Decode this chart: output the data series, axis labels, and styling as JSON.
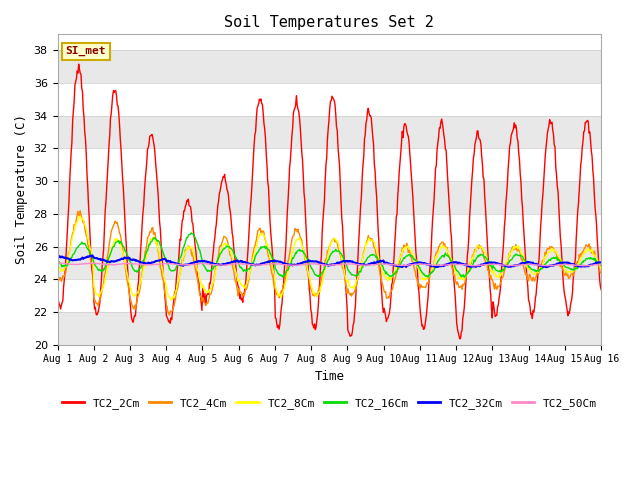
{
  "title": "Soil Temperatures Set 2",
  "xlabel": "Time",
  "ylabel": "Soil Temperature (C)",
  "ylim": [
    20,
    39
  ],
  "yticks": [
    20,
    22,
    24,
    26,
    28,
    30,
    32,
    34,
    36,
    38
  ],
  "fig_bg_color": "#ffffff",
  "plot_bg_color": "#ffffff",
  "band_color": "#e8e8e8",
  "annotation_text": "SI_met",
  "annotation_bg": "#ffffcc",
  "annotation_border": "#ccaa00",
  "annotation_text_color": "#880000",
  "series": [
    {
      "label": "TC2_2Cm",
      "color": "#ff0000",
      "lw": 1.0
    },
    {
      "label": "TC2_4Cm",
      "color": "#ff8800",
      "lw": 1.0
    },
    {
      "label": "TC2_8Cm",
      "color": "#ffff00",
      "lw": 1.0
    },
    {
      "label": "TC2_16Cm",
      "color": "#00dd00",
      "lw": 1.0
    },
    {
      "label": "TC2_32Cm",
      "color": "#0000ff",
      "lw": 1.5
    },
    {
      "label": "TC2_50Cm",
      "color": "#ff88cc",
      "lw": 1.0
    }
  ],
  "n_days": 15,
  "pts_per_day": 48,
  "day_peaks": [
    37.0,
    35.5,
    32.8,
    28.8,
    30.2,
    35.0,
    34.8,
    35.2,
    34.3,
    33.5,
    33.6,
    33.0,
    33.5,
    33.6,
    33.7
  ],
  "day_mins": [
    22.3,
    21.8,
    21.5,
    21.5,
    22.8,
    22.7,
    21.0,
    21.0,
    20.5,
    21.5,
    21.0,
    20.5,
    21.8,
    21.8,
    22.0
  ],
  "peak4": [
    28.0,
    27.5,
    27.0,
    26.0,
    26.5,
    27.0,
    27.0,
    26.5,
    26.5,
    26.0,
    26.2,
    26.0,
    26.0,
    26.0,
    26.0
  ],
  "min4": [
    24.0,
    22.5,
    22.3,
    22.0,
    22.5,
    23.0,
    23.0,
    23.0,
    23.0,
    23.0,
    23.5,
    23.5,
    23.5,
    24.0,
    24.2
  ],
  "peak8": [
    27.8,
    26.5,
    26.5,
    26.0,
    26.2,
    26.8,
    26.5,
    26.5,
    26.5,
    26.0,
    26.0,
    26.0,
    26.0,
    25.8,
    25.8
  ],
  "min8": [
    24.5,
    23.0,
    23.0,
    22.8,
    23.2,
    23.5,
    23.0,
    23.0,
    23.5,
    24.0,
    24.0,
    24.0,
    24.2,
    24.3,
    24.4
  ],
  "peak16": [
    26.2,
    26.3,
    26.5,
    26.8,
    26.0,
    26.0,
    25.8,
    25.8,
    25.5,
    25.5,
    25.5,
    25.5,
    25.5,
    25.3,
    25.3
  ],
  "min16": [
    24.8,
    24.5,
    24.5,
    24.5,
    24.5,
    24.5,
    24.2,
    24.2,
    24.2,
    24.2,
    24.2,
    24.2,
    24.5,
    24.5,
    24.6
  ],
  "val32_trend": [
    25.3,
    25.2,
    25.1,
    25.0,
    25.0,
    25.0,
    25.0,
    25.0,
    25.0,
    24.9,
    24.9,
    24.9,
    24.9,
    24.9,
    24.9
  ],
  "val50_trend": [
    24.95,
    24.93,
    24.92,
    24.92,
    24.91,
    24.91,
    24.9,
    24.9,
    24.9,
    24.89,
    24.89,
    24.88,
    24.88,
    24.87,
    24.87
  ]
}
